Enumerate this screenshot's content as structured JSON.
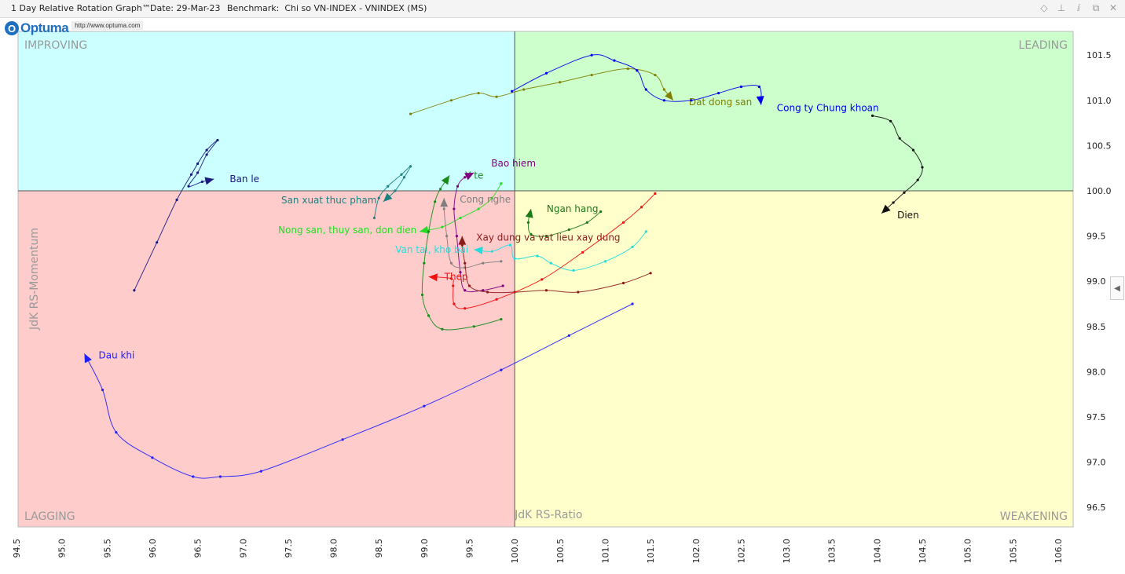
{
  "window": {
    "title": "1 Day Relative Rotation Graph™",
    "date": "Date: 29-Mar-23",
    "benchmark": "Benchmark:  Chi so VN-INDEX - VNINDEX (MS)",
    "icons": [
      "diamond-icon",
      "pin-icon",
      "info-icon",
      "restore-icon",
      "close-icon"
    ],
    "icon_glyphs": [
      "◇",
      "⊥",
      "ⅈ",
      "⧉",
      "✕"
    ]
  },
  "logo": {
    "name": "Optuma",
    "letter": "O",
    "url": "http://www.optuma.com"
  },
  "chart_data": {
    "type": "scatter",
    "title": "1 Day Relative Rotation Graph™",
    "xlabel": "JdK RS-Ratio",
    "ylabel": "JdK RS-Momentum",
    "xlim": [
      94.5,
      106.2
    ],
    "ylim": [
      96.25,
      101.75
    ],
    "x_center": 100.0,
    "y_center": 100.0,
    "x_ticks": [
      "94.5",
      "95.0",
      "95.5",
      "96.0",
      "96.5",
      "97.0",
      "97.5",
      "98.0",
      "98.5",
      "99.0",
      "99.5",
      "100.0",
      "100.5",
      "101.0",
      "101.5",
      "102.0",
      "102.5",
      "103.0",
      "103.5",
      "104.0",
      "104.5",
      "105.0",
      "105.5",
      "106.0"
    ],
    "y_ticks": [
      "96.5",
      "97.0",
      "97.5",
      "98.0",
      "98.5",
      "99.0",
      "99.5",
      "100.0",
      "100.5",
      "101.0",
      "101.5"
    ],
    "quadrants": {
      "leading": {
        "label": "LEADING",
        "color": "#ccffcc"
      },
      "weakening": {
        "label": "WEAKENING",
        "color": "#ffffcc"
      },
      "lagging": {
        "label": "LAGGING",
        "color": "#ffcccc"
      },
      "improving": {
        "label": "IMPROVING",
        "color": "#ccffff"
      }
    },
    "series": [
      {
        "name": "Dau khi",
        "color": "#1f1fff",
        "points": [
          [
            101.3,
            98.75
          ],
          [
            100.6,
            98.4
          ],
          [
            99.85,
            98.02
          ],
          [
            99.0,
            97.62
          ],
          [
            98.1,
            97.25
          ],
          [
            97.2,
            96.9
          ],
          [
            96.75,
            96.84
          ],
          [
            96.45,
            96.84
          ],
          [
            96.0,
            97.05
          ],
          [
            95.6,
            97.33
          ],
          [
            95.45,
            97.8
          ],
          [
            95.25,
            98.2
          ]
        ],
        "label_dx": 18,
        "label_dy": 2
      },
      {
        "name": "Ban le",
        "color": "#1a1a80",
        "points": [
          [
            95.8,
            98.9
          ],
          [
            96.05,
            99.43
          ],
          [
            96.27,
            99.9
          ],
          [
            96.43,
            100.18
          ],
          [
            96.5,
            100.3
          ],
          [
            96.6,
            100.45
          ],
          [
            96.72,
            100.56
          ],
          [
            96.6,
            100.4
          ],
          [
            96.5,
            100.2
          ],
          [
            96.4,
            100.05
          ],
          [
            96.55,
            100.1
          ],
          [
            96.68,
            100.13
          ]
        ],
        "label_dx": 20,
        "label_dy": 0
      },
      {
        "name": "San xuat thuc pham",
        "color": "#1a8080",
        "points": [
          [
            98.45,
            99.7
          ],
          [
            98.5,
            99.92
          ],
          [
            98.6,
            100.05
          ],
          [
            98.75,
            100.18
          ],
          [
            98.85,
            100.27
          ],
          [
            98.78,
            100.15
          ],
          [
            98.68,
            100.0
          ],
          [
            98.55,
            99.88
          ]
        ],
        "label_dx": -130,
        "label_dy": -2
      },
      {
        "name": "Nong san, thuy san, don dien",
        "color": "#22dd22",
        "points": [
          [
            99.85,
            100.08
          ],
          [
            99.75,
            99.92
          ],
          [
            99.6,
            99.8
          ],
          [
            99.4,
            99.7
          ],
          [
            99.2,
            99.6
          ],
          [
            98.95,
            99.55
          ]
        ],
        "label_dx": -180,
        "label_dy": -2
      },
      {
        "name": "Y te",
        "color": "#1a8a1a",
        "points": [
          [
            99.85,
            98.58
          ],
          [
            99.55,
            98.5
          ],
          [
            99.2,
            98.47
          ],
          [
            99.05,
            98.62
          ],
          [
            98.98,
            98.85
          ],
          [
            99.0,
            99.2
          ],
          [
            99.05,
            99.55
          ],
          [
            99.12,
            99.88
          ],
          [
            99.18,
            100.02
          ],
          [
            99.28,
            100.17
          ]
        ],
        "label_dx": 20,
        "label_dy": 0
      },
      {
        "name": "Bao hiem",
        "color": "#800080",
        "points": [
          [
            99.87,
            98.95
          ],
          [
            99.65,
            98.9
          ],
          [
            99.45,
            98.9
          ],
          [
            99.4,
            99.1
          ],
          [
            99.36,
            99.5
          ],
          [
            99.33,
            99.8
          ],
          [
            99.37,
            100.05
          ],
          [
            99.45,
            100.15
          ],
          [
            99.55,
            100.2
          ]
        ],
        "label_dx": 22,
        "label_dy": -12
      },
      {
        "name": "Cong nghe",
        "color": "#808080",
        "points": [
          [
            99.85,
            99.22
          ],
          [
            99.65,
            99.2
          ],
          [
            99.45,
            99.15
          ],
          [
            99.3,
            99.2
          ],
          [
            99.25,
            99.5
          ],
          [
            99.22,
            99.8
          ],
          [
            99.22,
            99.92
          ]
        ],
        "label_dx": 20,
        "label_dy": 2
      },
      {
        "name": "Ngan hang",
        "color": "#1a7a1a",
        "points": [
          [
            100.95,
            99.77
          ],
          [
            100.8,
            99.65
          ],
          [
            100.6,
            99.57
          ],
          [
            100.35,
            99.5
          ],
          [
            100.18,
            99.52
          ],
          [
            100.15,
            99.65
          ],
          [
            100.18,
            99.8
          ]
        ],
        "label_dx": 20,
        "label_dy": 0
      },
      {
        "name": "Xay dung va vat lieu xay dung",
        "color": "#8b1a1a",
        "points": [
          [
            101.5,
            99.09
          ],
          [
            101.2,
            98.98
          ],
          [
            100.7,
            98.88
          ],
          [
            100.35,
            98.9
          ],
          [
            100.0,
            98.88
          ],
          [
            99.7,
            98.88
          ],
          [
            99.5,
            98.95
          ],
          [
            99.45,
            99.2
          ],
          [
            99.42,
            99.4
          ],
          [
            99.42,
            99.5
          ]
        ],
        "label_dx": 18,
        "label_dy": 2
      },
      {
        "name": "Van tai, kho bai",
        "color": "#22dddd",
        "points": [
          [
            101.45,
            99.55
          ],
          [
            101.3,
            99.38
          ],
          [
            101.0,
            99.22
          ],
          [
            100.65,
            99.12
          ],
          [
            100.4,
            99.2
          ],
          [
            100.25,
            99.28
          ],
          [
            100.0,
            99.25
          ],
          [
            99.95,
            99.4
          ],
          [
            99.75,
            99.33
          ],
          [
            99.55,
            99.35
          ]
        ],
        "label_dx": -100,
        "label_dy": 0
      },
      {
        "name": "Thep",
        "color": "#ee1111",
        "points": [
          [
            101.55,
            99.97
          ],
          [
            101.4,
            99.82
          ],
          [
            101.2,
            99.65
          ],
          [
            100.75,
            99.32
          ],
          [
            100.3,
            99.02
          ],
          [
            99.8,
            98.8
          ],
          [
            99.45,
            98.7
          ],
          [
            99.33,
            98.75
          ],
          [
            99.32,
            98.95
          ],
          [
            99.3,
            99.03
          ],
          [
            99.05,
            99.05
          ]
        ],
        "label_dx": 20,
        "label_dy": 0
      },
      {
        "name": "Dat dong san",
        "color": "#808000",
        "points": [
          [
            98.85,
            100.85
          ],
          [
            99.3,
            101.0
          ],
          [
            99.6,
            101.08
          ],
          [
            99.8,
            101.04
          ],
          [
            100.1,
            101.12
          ],
          [
            100.5,
            101.2
          ],
          [
            100.85,
            101.28
          ],
          [
            101.25,
            101.35
          ],
          [
            101.55,
            101.28
          ],
          [
            101.65,
            101.12
          ],
          [
            101.75,
            101.0
          ]
        ],
        "label_dx": 20,
        "label_dy": 2
      },
      {
        "name": "Cong ty Chung khoan",
        "color": "#0000ee",
        "points": [
          [
            99.97,
            101.1
          ],
          [
            100.35,
            101.3
          ],
          [
            100.85,
            101.5
          ],
          [
            101.1,
            101.44
          ],
          [
            101.35,
            101.33
          ],
          [
            101.45,
            101.12
          ],
          [
            101.65,
            101.0
          ],
          [
            101.95,
            101.0
          ],
          [
            102.25,
            101.08
          ],
          [
            102.5,
            101.15
          ],
          [
            102.7,
            101.15
          ],
          [
            102.72,
            100.95
          ]
        ],
        "label_dx": 20,
        "label_dy": 4
      },
      {
        "name": "Dien",
        "color": "#111111",
        "points": [
          [
            103.95,
            100.83
          ],
          [
            104.15,
            100.77
          ],
          [
            104.25,
            100.58
          ],
          [
            104.4,
            100.45
          ],
          [
            104.5,
            100.26
          ],
          [
            104.45,
            100.12
          ],
          [
            104.3,
            99.98
          ],
          [
            104.18,
            99.87
          ],
          [
            104.05,
            99.75
          ]
        ],
        "label_dx": 20,
        "label_dy": 2
      }
    ]
  }
}
